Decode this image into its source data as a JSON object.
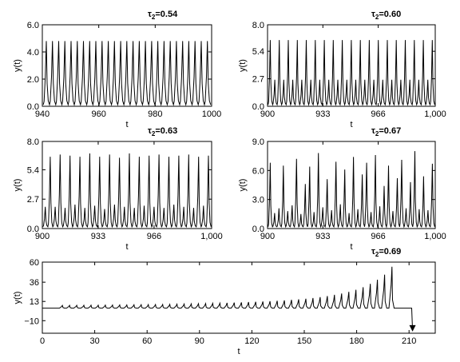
{
  "chart_data": [
    {
      "type": "line",
      "tau_symbol": "τ",
      "tau_sub": "2",
      "tau_value": "=0.54",
      "xlabel": "t",
      "ylabel": "y(t)",
      "xlim": [
        940,
        1000
      ],
      "ylim": [
        0,
        6.0
      ],
      "xticks": [
        940,
        960,
        980,
        1000
      ],
      "xtick_labels": [
        "940",
        "960",
        "980",
        "1000"
      ],
      "yticks": [
        0,
        2.0,
        4.0,
        6.0
      ],
      "ytick_labels": [
        "0.0",
        "2.0",
        "4.0",
        "6.0"
      ],
      "peaks": [
        4.8,
        4.8,
        4.8,
        4.8,
        4.8,
        4.8,
        4.8,
        4.8,
        4.8,
        4.8,
        4.8,
        4.8,
        4.8,
        4.8,
        4.8,
        4.8,
        4.8,
        4.8,
        4.8,
        4.8,
        4.8,
        4.8,
        4.8,
        4.8,
        4.8,
        4.8,
        4.8
      ]
    },
    {
      "type": "line",
      "tau_symbol": "τ",
      "tau_sub": "2",
      "tau_value": "=0.60",
      "xlabel": "t",
      "ylabel": "y(t)",
      "xlim": [
        900,
        1000
      ],
      "ylim": [
        0,
        8.0
      ],
      "xticks": [
        900,
        933,
        966,
        1000
      ],
      "xtick_labels": [
        "900",
        "933",
        "966",
        "1,000"
      ],
      "yticks": [
        0,
        2.7,
        5.4,
        8.0
      ],
      "ytick_labels": [
        "0.0",
        "2.7",
        "5.4",
        "8.0"
      ],
      "peaks": [
        6.5,
        2.6,
        6.5,
        2.6,
        6.5,
        2.6,
        6.5,
        2.6,
        6.5,
        2.6,
        6.5,
        2.6,
        6.5,
        2.6,
        6.5,
        2.6,
        6.5,
        2.6,
        6.5,
        2.6,
        6.5,
        2.6,
        6.5,
        2.6,
        6.5,
        2.6,
        6.5,
        2.6,
        6.5,
        2.6,
        6.5,
        2.6,
        6.5,
        2.6,
        6.5,
        2.6,
        6.5
      ]
    },
    {
      "type": "line",
      "tau_symbol": "τ",
      "tau_sub": "2",
      "tau_value": "=0.63",
      "xlabel": "t",
      "ylabel": "y(t)",
      "xlim": [
        900,
        1000
      ],
      "ylim": [
        0,
        8.0
      ],
      "xticks": [
        900,
        933,
        966,
        1000
      ],
      "xtick_labels": [
        "900",
        "933",
        "966",
        "1,000"
      ],
      "yticks": [
        0,
        2.7,
        5.4,
        8.0
      ],
      "ytick_labels": [
        "0.0",
        "2.7",
        "5.4",
        "8.0"
      ],
      "peaks": [
        2.0,
        6.6,
        2.0,
        6.8,
        1.9,
        6.7,
        2.2,
        6.6,
        1.9,
        6.9,
        2.1,
        6.6,
        1.8,
        6.8,
        2.2,
        6.5,
        2.0,
        6.9,
        1.9,
        6.6,
        2.1,
        6.7,
        2.0,
        6.8,
        1.9,
        6.6,
        2.2,
        6.7,
        2.0,
        6.8,
        1.9,
        6.6,
        2.1,
        6.7
      ]
    },
    {
      "type": "line",
      "tau_symbol": "τ",
      "tau_sub": "2",
      "tau_value": "=0.67",
      "xlabel": "t",
      "ylabel": "y(t)",
      "xlim": [
        900,
        1000
      ],
      "ylim": [
        0,
        9.0
      ],
      "xticks": [
        900,
        933,
        966,
        1000
      ],
      "xtick_labels": [
        "900",
        "933",
        "966",
        "1,000"
      ],
      "yticks": [
        0,
        3.0,
        6.0,
        9.0
      ],
      "ytick_labels": [
        "0.0",
        "3.0",
        "6.0",
        "9.0"
      ],
      "peaks": [
        6.8,
        1.6,
        2.1,
        6.5,
        1.8,
        2.4,
        7.2,
        1.5,
        4.6,
        6.4,
        1.7,
        7.8,
        2.2,
        5.1,
        1.9,
        6.9,
        2.5,
        6.1,
        1.6,
        7.4,
        2.0,
        5.6,
        6.8,
        1.7,
        7.6,
        2.3,
        4.4,
        6.5,
        1.8,
        5.2,
        7.1,
        2.1,
        4.8,
        8.0,
        2.0,
        5.4,
        1.9,
        6.7
      ]
    },
    {
      "type": "line",
      "tau_symbol": "τ",
      "tau_sub": "2",
      "tau_value": "=0.69",
      "xlabel": "t",
      "ylabel": "y(t)",
      "xlim": [
        0,
        225
      ],
      "ylim": [
        -25,
        60
      ],
      "xticks": [
        0,
        30,
        60,
        90,
        120,
        150,
        180,
        210
      ],
      "xtick_labels": [
        "0",
        "30",
        "60",
        "90",
        "120",
        "150",
        "180",
        "210"
      ],
      "yticks": [
        -10,
        13,
        36,
        60
      ],
      "ytick_labels": [
        "−10",
        "13",
        "36",
        "60"
      ],
      "baseline": 5,
      "period": 4.1,
      "peaks_x": [
        11.5,
        15.6,
        19.7,
        23.8,
        27.9,
        32,
        36.1,
        40.2,
        44.3,
        48.4,
        52.5,
        56.6,
        60.7,
        64.8,
        68.9,
        73,
        77.1,
        81.2,
        85.3,
        89.4,
        93.5,
        97.6,
        101.7,
        105.8,
        109.9,
        114,
        118.1,
        122.2,
        126.3,
        130.4,
        134.5,
        138.6,
        142.7,
        146.8,
        150.9,
        155,
        159.1,
        163.2,
        167.3,
        171.4,
        175.5,
        179.6,
        183.7,
        187.8,
        191.9,
        196,
        200.2
      ],
      "peaks_y": [
        8.2,
        8.3,
        8.3,
        8.4,
        8.5,
        8.5,
        8.6,
        8.7,
        8.8,
        8.8,
        9,
        9.1,
        9.2,
        9.3,
        9.4,
        9.6,
        9.8,
        10,
        10.1,
        10.3,
        10.5,
        10.8,
        11,
        11.3,
        11.6,
        11.9,
        12.2,
        12.5,
        12.9,
        13.3,
        13.8,
        14.3,
        14.9,
        15.5,
        16.3,
        17.1,
        18.2,
        19.4,
        20.9,
        22.5,
        24.5,
        27,
        30,
        34,
        39,
        45,
        54.5
      ],
      "end_x": 212,
      "end_y": -22
    }
  ]
}
